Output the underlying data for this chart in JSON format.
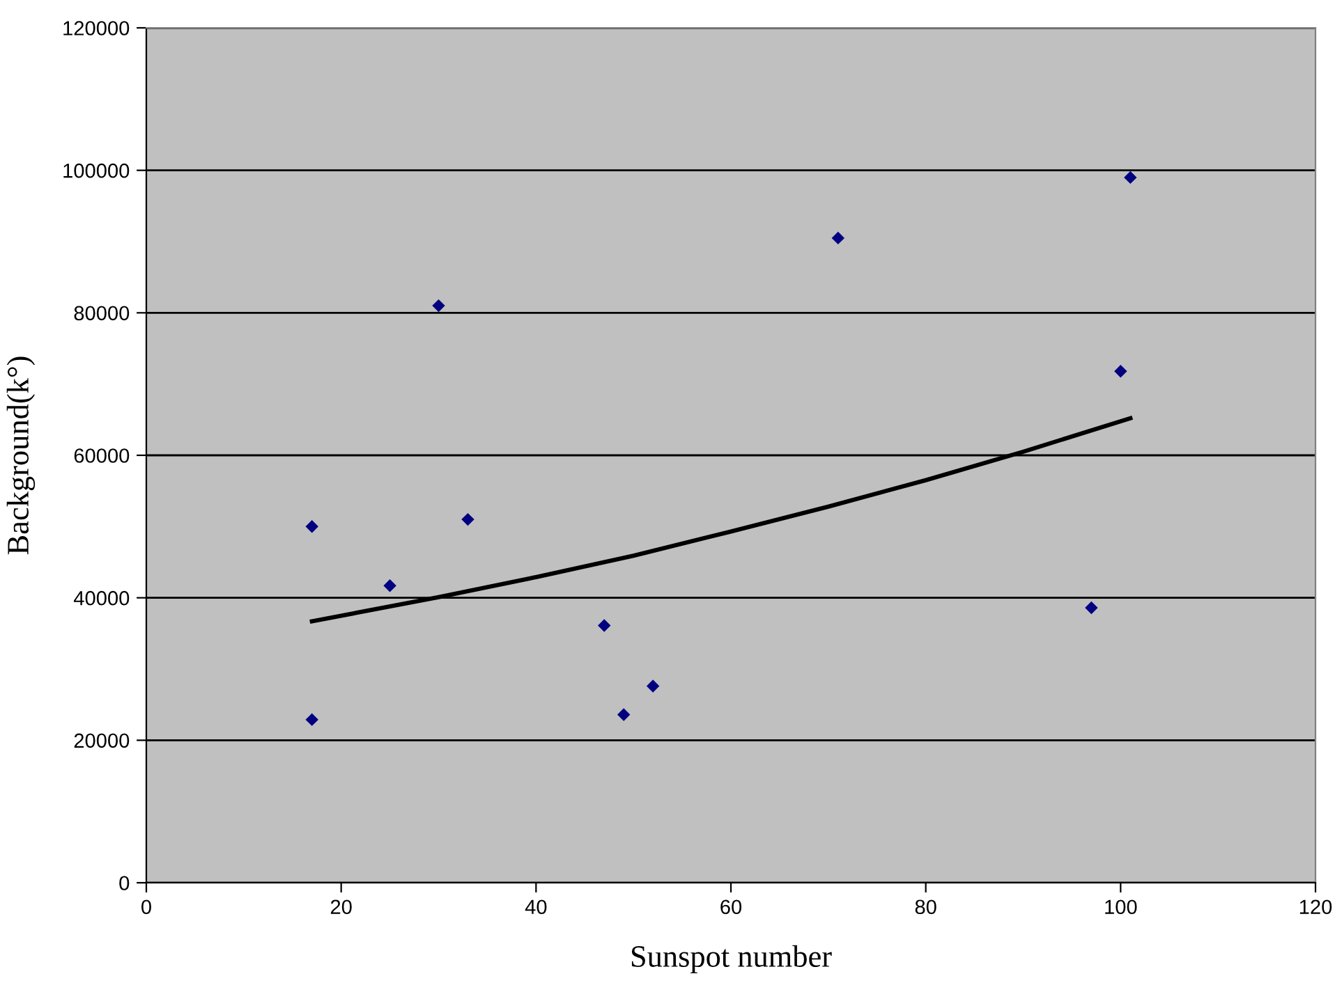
{
  "chart_data": {
    "type": "scatter",
    "xlabel": "Sunspot number",
    "ylabel": "Background(k°)",
    "xlim": [
      0,
      120
    ],
    "xticks": [
      0,
      20,
      40,
      60,
      80,
      100,
      120
    ],
    "ylim": [
      0,
      120000
    ],
    "yticks": [
      0,
      20000,
      40000,
      60000,
      80000,
      100000,
      120000
    ],
    "grid": "y",
    "legend": false,
    "series": [
      {
        "color": "#000080",
        "marker": "diamond",
        "x": [
          17,
          17,
          25,
          30,
          33,
          47,
          49,
          52,
          71,
          97,
          100,
          101
        ],
        "values": [
          50000,
          22900,
          41700,
          81000,
          51000,
          36100,
          23600,
          27600,
          90500,
          38600,
          71800,
          99000
        ]
      },
      {
        "type": "line",
        "color": "#000000",
        "marker": "none",
        "line_style": "solid",
        "x": [
          17,
          30,
          40,
          50,
          60,
          70,
          80,
          90,
          101
        ],
        "values": [
          36700,
          40100,
          42900,
          45900,
          49300,
          52800,
          56500,
          60500,
          65200
        ]
      }
    ]
  }
}
